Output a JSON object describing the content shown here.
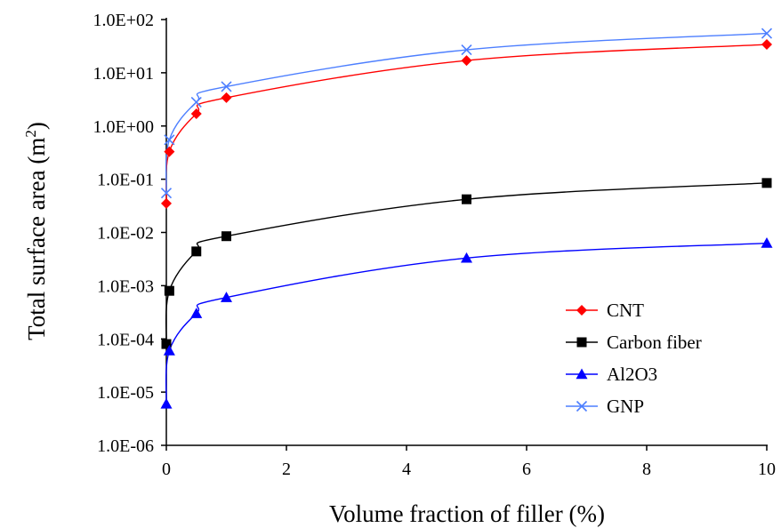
{
  "chart_data": {
    "type": "line",
    "xlabel": "Volume fraction of filler (%)",
    "ylabel": "Total surface area (m",
    "ylabel_sup": "2",
    "ylabel_close": ")",
    "xlim": [
      0,
      10
    ],
    "ylim": [
      1e-06,
      100
    ],
    "yscale": "log",
    "grid": false,
    "legend_position": "bottom-right",
    "x_ticks": [
      0,
      2,
      4,
      6,
      8,
      10
    ],
    "x_tick_labels": [
      "0",
      "2",
      "4",
      "6",
      "8",
      "10"
    ],
    "y_ticks": [
      1e-06,
      1e-05,
      0.0001,
      0.001,
      0.01,
      0.1,
      1,
      10,
      100
    ],
    "y_tick_labels": [
      "1.0E-06",
      "1.0E-05",
      "1.0E-04",
      "1.0E-03",
      "1.0E-02",
      "1.0E-01",
      "1.0E+00",
      "1.0E+01",
      "1.0E+02"
    ],
    "series": [
      {
        "name": "CNT",
        "color": "#ff0000",
        "marker": "diamond",
        "x": [
          0,
          0.05,
          0.5,
          1,
          5,
          10
        ],
        "y": [
          0.035,
          0.33,
          1.7,
          3.4,
          17,
          34
        ]
      },
      {
        "name": "Carbon fiber",
        "color": "#000000",
        "marker": "square",
        "x": [
          0,
          0.05,
          0.5,
          1,
          5,
          10
        ],
        "y": [
          8e-05,
          0.0008,
          0.0044,
          0.0085,
          0.042,
          0.085
        ]
      },
      {
        "name": "Al2O3",
        "color": "#0000ff",
        "marker": "triangle",
        "x": [
          0,
          0.05,
          0.5,
          1,
          5,
          10
        ],
        "y": [
          6e-06,
          6e-05,
          0.0003,
          0.0006,
          0.0033,
          0.0063
        ]
      },
      {
        "name": "GNP",
        "color": "#4d7fff",
        "marker": "x",
        "x": [
          0,
          0.05,
          0.5,
          1,
          5,
          10
        ],
        "y": [
          0.055,
          0.55,
          2.8,
          5.5,
          27,
          55
        ]
      }
    ]
  }
}
